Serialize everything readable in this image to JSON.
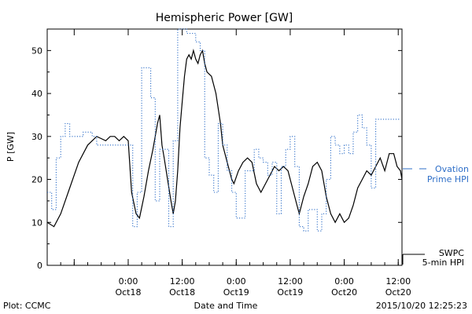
{
  "chart_data": {
    "type": "line",
    "title": "Hemispheric Power [GW]",
    "ylabel": "P [GW]",
    "xlabel": "Date and Time",
    "ylim": [
      0,
      55
    ],
    "xlim": [
      "2015-10-17 06:00",
      "2015-10-20 12:50"
    ],
    "y_ticks": [
      0,
      10,
      20,
      30,
      40,
      50
    ],
    "x_ticks": [
      {
        "t": "2015-10-17 12:00",
        "label": ""
      },
      {
        "t": "2015-10-18 00:00",
        "label": "0:00",
        "sublabel": "Oct18"
      },
      {
        "t": "2015-10-18 12:00",
        "label": "12:00",
        "sublabel": "Oct18"
      },
      {
        "t": "2015-10-19 00:00",
        "label": "0:00",
        "sublabel": "Oct19"
      },
      {
        "t": "2015-10-19 12:00",
        "label": "12:00",
        "sublabel": "Oct19"
      },
      {
        "t": "2015-10-20 00:00",
        "label": "0:00",
        "sublabel": "Oct20"
      },
      {
        "t": "2015-10-20 12:00",
        "label": "12:00",
        "sublabel": "Oct20"
      }
    ],
    "series": [
      {
        "name": "SWPC 5-min HPI",
        "color": "#000000",
        "style": "solid",
        "step": false,
        "points": [
          [
            "2015-10-17 06:00",
            10
          ],
          [
            "2015-10-17 07:30",
            9
          ],
          [
            "2015-10-17 09:00",
            12
          ],
          [
            "2015-10-17 11:00",
            18
          ],
          [
            "2015-10-17 13:00",
            24
          ],
          [
            "2015-10-17 15:00",
            28
          ],
          [
            "2015-10-17 16:00",
            29
          ],
          [
            "2015-10-17 17:00",
            30
          ],
          [
            "2015-10-17 19:00",
            29
          ],
          [
            "2015-10-17 20:00",
            30
          ],
          [
            "2015-10-17 21:00",
            30
          ],
          [
            "2015-10-17 22:00",
            29
          ],
          [
            "2015-10-17 23:00",
            30
          ],
          [
            "2015-10-18 00:00",
            29
          ],
          [
            "2015-10-18 00:45",
            17
          ],
          [
            "2015-10-18 01:45",
            12
          ],
          [
            "2015-10-18 02:30",
            11
          ],
          [
            "2015-10-18 03:30",
            16
          ],
          [
            "2015-10-18 04:30",
            22
          ],
          [
            "2015-10-18 05:30",
            27
          ],
          [
            "2015-10-18 06:30",
            33
          ],
          [
            "2015-10-18 07:00",
            35
          ],
          [
            "2015-10-18 07:30",
            28
          ],
          [
            "2015-10-18 08:00",
            25
          ],
          [
            "2015-10-18 08:45",
            20
          ],
          [
            "2015-10-18 09:30",
            15
          ],
          [
            "2015-10-18 10:00",
            12
          ],
          [
            "2015-10-18 10:30",
            15
          ],
          [
            "2015-10-18 11:00",
            22
          ],
          [
            "2015-10-18 11:30",
            32
          ],
          [
            "2015-10-18 12:00",
            38
          ],
          [
            "2015-10-18 12:30",
            44
          ],
          [
            "2015-10-18 13:00",
            48
          ],
          [
            "2015-10-18 13:30",
            49
          ],
          [
            "2015-10-18 14:00",
            48
          ],
          [
            "2015-10-18 14:30",
            50
          ],
          [
            "2015-10-18 15:00",
            48
          ],
          [
            "2015-10-18 15:30",
            47
          ],
          [
            "2015-10-18 16:00",
            49
          ],
          [
            "2015-10-18 16:30",
            50
          ],
          [
            "2015-10-18 17:00",
            47
          ],
          [
            "2015-10-18 17:30",
            45
          ],
          [
            "2015-10-18 18:30",
            44
          ],
          [
            "2015-10-18 19:30",
            40
          ],
          [
            "2015-10-18 20:30",
            33
          ],
          [
            "2015-10-18 21:00",
            28
          ],
          [
            "2015-10-18 22:00",
            24
          ],
          [
            "2015-10-18 23:00",
            20
          ],
          [
            "2015-10-18 23:30",
            19
          ],
          [
            "2015-10-19 00:30",
            22
          ],
          [
            "2015-10-19 01:30",
            24
          ],
          [
            "2015-10-19 02:30",
            25
          ],
          [
            "2015-10-19 03:30",
            24
          ],
          [
            "2015-10-19 04:30",
            19
          ],
          [
            "2015-10-19 05:30",
            17
          ],
          [
            "2015-10-19 06:30",
            19
          ],
          [
            "2015-10-19 07:30",
            21
          ],
          [
            "2015-10-19 08:30",
            23
          ],
          [
            "2015-10-19 09:30",
            22
          ],
          [
            "2015-10-19 10:30",
            23
          ],
          [
            "2015-10-19 11:30",
            22
          ],
          [
            "2015-10-19 12:30",
            18
          ],
          [
            "2015-10-19 13:30",
            14
          ],
          [
            "2015-10-19 14:00",
            12
          ],
          [
            "2015-10-19 15:00",
            16
          ],
          [
            "2015-10-19 16:00",
            19
          ],
          [
            "2015-10-19 17:00",
            23
          ],
          [
            "2015-10-19 18:00",
            24
          ],
          [
            "2015-10-19 19:00",
            22
          ],
          [
            "2015-10-19 20:00",
            16
          ],
          [
            "2015-10-19 21:00",
            12
          ],
          [
            "2015-10-19 22:00",
            10
          ],
          [
            "2015-10-19 23:00",
            12
          ],
          [
            "2015-10-20 00:00",
            10
          ],
          [
            "2015-10-20 01:00",
            11
          ],
          [
            "2015-10-20 02:00",
            14
          ],
          [
            "2015-10-20 03:00",
            18
          ],
          [
            "2015-10-20 04:00",
            20
          ],
          [
            "2015-10-20 05:00",
            22
          ],
          [
            "2015-10-20 06:00",
            21
          ],
          [
            "2015-10-20 07:00",
            23
          ],
          [
            "2015-10-20 08:00",
            25
          ],
          [
            "2015-10-20 09:00",
            22
          ],
          [
            "2015-10-20 10:00",
            26
          ],
          [
            "2015-10-20 11:00",
            26
          ],
          [
            "2015-10-20 11:45",
            23
          ],
          [
            "2015-10-20 12:30",
            22
          ],
          [
            "2015-10-20 12:50",
            20
          ]
        ]
      },
      {
        "name": "Ovation Prime HPI",
        "color": "#2f6fc8",
        "style": "dotted",
        "step": true,
        "points": [
          [
            "2015-10-17 06:00",
            17
          ],
          [
            "2015-10-17 07:00",
            13
          ],
          [
            "2015-10-17 08:00",
            25
          ],
          [
            "2015-10-17 09:00",
            30
          ],
          [
            "2015-10-17 10:00",
            33
          ],
          [
            "2015-10-17 11:00",
            30
          ],
          [
            "2015-10-17 12:00",
            30
          ],
          [
            "2015-10-17 14:00",
            31
          ],
          [
            "2015-10-17 16:00",
            30
          ],
          [
            "2015-10-17 17:00",
            28
          ],
          [
            "2015-10-18 01:00",
            9
          ],
          [
            "2015-10-18 02:00",
            17
          ],
          [
            "2015-10-18 03:00",
            46
          ],
          [
            "2015-10-18 05:00",
            39
          ],
          [
            "2015-10-18 06:00",
            15
          ],
          [
            "2015-10-18 07:00",
            27
          ],
          [
            "2015-10-18 09:00",
            9
          ],
          [
            "2015-10-18 10:00",
            29
          ],
          [
            "2015-10-18 11:00",
            55
          ],
          [
            "2015-10-18 13:00",
            54
          ],
          [
            "2015-10-18 15:00",
            52
          ],
          [
            "2015-10-18 16:00",
            50
          ],
          [
            "2015-10-18 17:00",
            25
          ],
          [
            "2015-10-18 18:00",
            21
          ],
          [
            "2015-10-18 19:00",
            17
          ],
          [
            "2015-10-18 20:00",
            33
          ],
          [
            "2015-10-18 21:00",
            28
          ],
          [
            "2015-10-18 22:00",
            22
          ],
          [
            "2015-10-18 23:00",
            17
          ],
          [
            "2015-10-19 00:00",
            11
          ],
          [
            "2015-10-19 02:00",
            22
          ],
          [
            "2015-10-19 04:00",
            27
          ],
          [
            "2015-10-19 05:00",
            25
          ],
          [
            "2015-10-19 06:00",
            24
          ],
          [
            "2015-10-19 07:00",
            21
          ],
          [
            "2015-10-19 08:00",
            24
          ],
          [
            "2015-10-19 09:00",
            12
          ],
          [
            "2015-10-19 10:00",
            23
          ],
          [
            "2015-10-19 11:00",
            27
          ],
          [
            "2015-10-19 12:00",
            30
          ],
          [
            "2015-10-19 13:00",
            23
          ],
          [
            "2015-10-19 14:00",
            9
          ],
          [
            "2015-10-19 15:00",
            8
          ],
          [
            "2015-10-19 16:00",
            13
          ],
          [
            "2015-10-19 18:00",
            8
          ],
          [
            "2015-10-19 19:00",
            12
          ],
          [
            "2015-10-19 20:00",
            20
          ],
          [
            "2015-10-19 21:00",
            30
          ],
          [
            "2015-10-19 22:00",
            28
          ],
          [
            "2015-10-19 23:00",
            26
          ],
          [
            "2015-10-20 00:00",
            28
          ],
          [
            "2015-10-20 01:00",
            26
          ],
          [
            "2015-10-20 02:00",
            31
          ],
          [
            "2015-10-20 03:00",
            35
          ],
          [
            "2015-10-20 04:00",
            32
          ],
          [
            "2015-10-20 05:00",
            28
          ],
          [
            "2015-10-20 06:00",
            18
          ],
          [
            "2015-10-20 07:00",
            34
          ],
          [
            "2015-10-20 08:00",
            34
          ]
        ]
      }
    ],
    "legend": {
      "placement": "right",
      "entries": [
        {
          "series": "Ovation Prime HPI",
          "line1": "Ovation",
          "line2": "Prime HPI"
        },
        {
          "series": "SWPC 5-min HPI",
          "line1": "SWPC",
          "line2": "5-min HPI"
        }
      ]
    }
  },
  "footer": {
    "left": "Plot: CCMC",
    "center": "Date and Time",
    "right": "2015/10/20 12:25:23"
  }
}
